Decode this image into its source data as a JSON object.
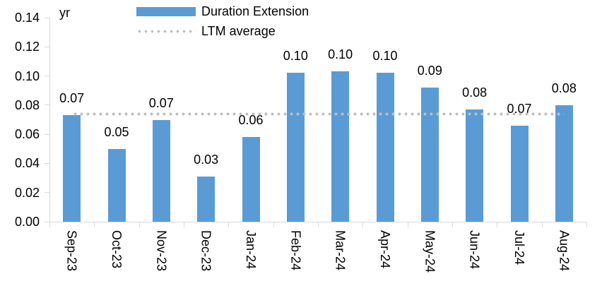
{
  "chart_data": {
    "type": "bar",
    "unit_label": "yr",
    "categories": [
      "Sep-23",
      "Oct-23",
      "Nov-23",
      "Dec-23",
      "Jan-24",
      "Feb-24",
      "Mar-24",
      "Apr-24",
      "May-24",
      "Jun-24",
      "Jul-24",
      "Aug-24"
    ],
    "series": [
      {
        "name": "Duration Extension",
        "color": "#5B9BD5",
        "values": [
          0.073,
          0.05,
          0.07,
          0.031,
          0.058,
          0.102,
          0.103,
          0.102,
          0.092,
          0.077,
          0.066,
          0.08
        ],
        "labels": [
          "0.07",
          "0.05",
          "0.07",
          "0.03",
          "0.06",
          "0.10",
          "0.10",
          "0.10",
          "0.09",
          "0.08",
          "0.07",
          "0.08"
        ]
      }
    ],
    "ltm_average": {
      "name": "LTM average",
      "value": 0.074,
      "color": "#BFBFBF",
      "style": "dotted"
    },
    "ylim": [
      0,
      0.14
    ],
    "ytick_step": 0.02,
    "ytick_labels": [
      "0.00",
      "0.02",
      "0.04",
      "0.06",
      "0.08",
      "0.10",
      "0.12",
      "0.14"
    ],
    "xlabel": "",
    "ylabel": "yr",
    "legend_position": "top-center",
    "grid": false,
    "axis_color": "#D9D9D9",
    "text_color": "#000000",
    "background_color": "#FFFFFF"
  }
}
